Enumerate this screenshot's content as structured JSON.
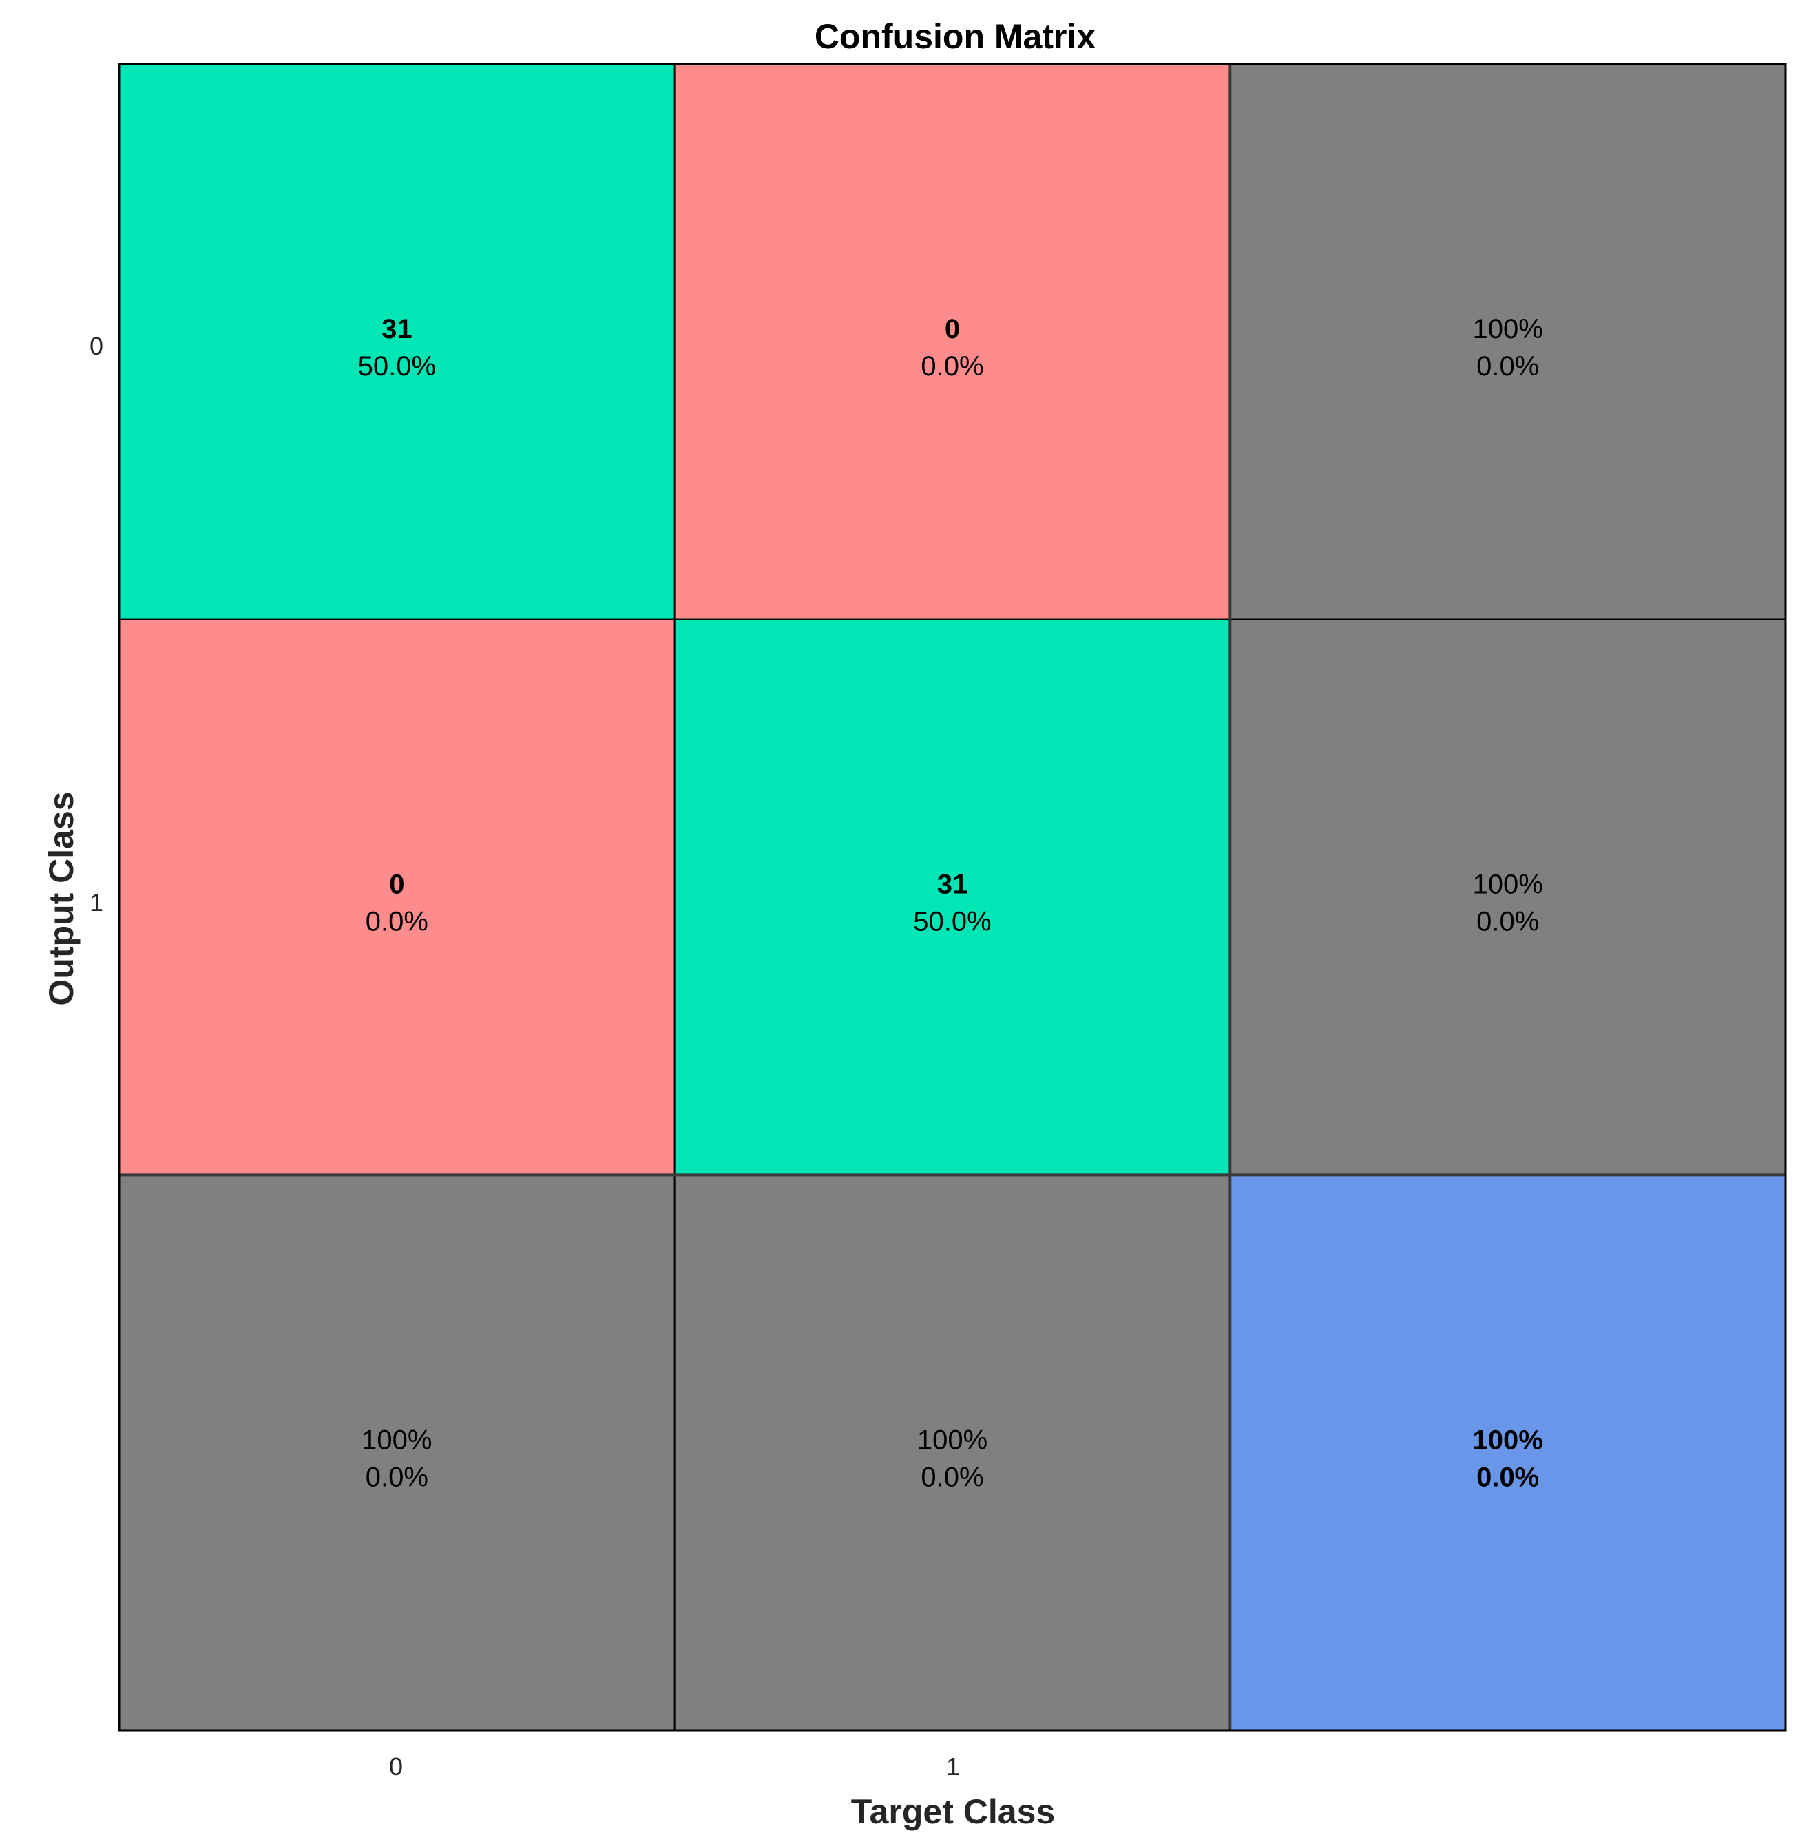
{
  "chart_data": {
    "type": "heatmap",
    "title": "Confusion Matrix",
    "xlabel": "Target Class",
    "ylabel": "Output Class",
    "x_ticks": [
      "0",
      "1"
    ],
    "y_ticks": [
      "0",
      "1"
    ],
    "colors": {
      "correct": "#00E6B4",
      "incorrect": "#FF8C8C",
      "summary": "#808080",
      "overall": "#6A96EA",
      "green_text": "#147814",
      "red_text": "#8C1414",
      "dark_text": "#000000"
    },
    "cells": [
      [
        {
          "kind": "correct",
          "main": "31",
          "sub": "50.0%"
        },
        {
          "kind": "incorrect",
          "main": "0",
          "sub": "0.0%"
        },
        {
          "kind": "summary",
          "main": "100%",
          "sub": "0.0%"
        }
      ],
      [
        {
          "kind": "incorrect",
          "main": "0",
          "sub": "0.0%"
        },
        {
          "kind": "correct",
          "main": "31",
          "sub": "50.0%"
        },
        {
          "kind": "summary",
          "main": "100%",
          "sub": "0.0%"
        }
      ],
      [
        {
          "kind": "summary",
          "main": "100%",
          "sub": "0.0%"
        },
        {
          "kind": "summary",
          "main": "100%",
          "sub": "0.0%"
        },
        {
          "kind": "overall",
          "main": "100%",
          "sub": "0.0%"
        }
      ]
    ]
  }
}
